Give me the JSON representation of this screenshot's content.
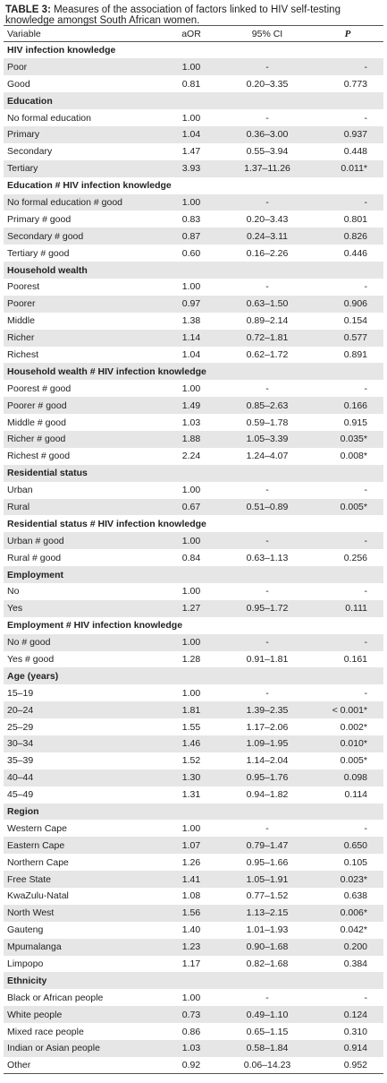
{
  "caption": {
    "label": "TABLE 3:",
    "text": " Measures of the association of factors linked to HIV self-testing knowledge amongst South African women."
  },
  "headers": [
    "Variable",
    "aOR",
    "95% CI",
    "P"
  ],
  "sections": [
    {
      "title": "HIV infection knowledge",
      "rows": [
        [
          "Poor",
          "1.00",
          "-",
          "-"
        ],
        [
          "Good",
          "0.81",
          "0.20–3.35",
          "0.773"
        ]
      ]
    },
    {
      "title": "Education",
      "rows": [
        [
          "No formal education",
          "1.00",
          "-",
          "-"
        ],
        [
          "Primary",
          "1.04",
          "0.36–3.00",
          "0.937"
        ],
        [
          "Secondary",
          "1.47",
          "0.55–3.94",
          "0.448"
        ],
        [
          "Tertiary",
          "3.93",
          "1.37–11.26",
          "0.011*"
        ]
      ]
    },
    {
      "title": "Education # HIV infection knowledge",
      "rows": [
        [
          "No formal education # good",
          "1.00",
          "-",
          "-"
        ],
        [
          "Primary # good",
          "0.83",
          "0.20–3.43",
          "0.801"
        ],
        [
          "Secondary # good",
          "0.87",
          "0.24–3.11",
          "0.826"
        ],
        [
          "Tertiary # good",
          "0.60",
          "0.16–2.26",
          "0.446"
        ]
      ]
    },
    {
      "title": "Household wealth",
      "rows": [
        [
          "Poorest",
          "1.00",
          "-",
          "-"
        ],
        [
          "Poorer",
          "0.97",
          "0.63–1.50",
          "0.906"
        ],
        [
          "Middle",
          "1.38",
          "0.89–2.14",
          "0.154"
        ],
        [
          "Richer",
          "1.14",
          "0.72–1.81",
          "0.577"
        ],
        [
          "Richest",
          "1.04",
          "0.62–1.72",
          "0.891"
        ]
      ]
    },
    {
      "title": "Household wealth # HIV infection knowledge",
      "rows": [
        [
          "Poorest # good",
          "1.00",
          "-",
          "-"
        ],
        [
          "Poorer # good",
          "1.49",
          "0.85–2.63",
          "0.166"
        ],
        [
          "Middle # good",
          "1.03",
          "0.59–1.78",
          "0.915"
        ],
        [
          "Richer # good",
          "1.88",
          "1.05–3.39",
          "0.035*"
        ],
        [
          "Richest # good",
          "2.24",
          "1.24–4.07",
          "0.008*"
        ]
      ]
    },
    {
      "title": "Residential status",
      "rows": [
        [
          "Urban",
          "1.00",
          "-",
          "-"
        ],
        [
          "Rural",
          "0.67",
          "0.51–0.89",
          "0.005*"
        ]
      ]
    },
    {
      "title": "Residential status # HIV infection knowledge",
      "rows": [
        [
          "Urban # good",
          "1.00",
          "-",
          "-"
        ],
        [
          "Rural # good",
          "0.84",
          "0.63–1.13",
          "0.256"
        ]
      ]
    },
    {
      "title": "Employment",
      "rows": [
        [
          "No",
          "1.00",
          "-",
          "-"
        ],
        [
          "Yes",
          "1.27",
          "0.95–1.72",
          "0.111"
        ]
      ]
    },
    {
      "title": "Employment # HIV infection knowledge",
      "rows": [
        [
          "No # good",
          "1.00",
          "-",
          "-"
        ],
        [
          "Yes # good",
          "1.28",
          "0.91–1.81",
          "0.161"
        ]
      ]
    },
    {
      "title": "Age (years)",
      "rows": [
        [
          "15–19",
          "1.00",
          "-",
          "-"
        ],
        [
          "20–24",
          "1.81",
          "1.39–2.35",
          "< 0.001*"
        ],
        [
          "25–29",
          "1.55",
          "1.17–2.06",
          "0.002*"
        ],
        [
          "30–34",
          "1.46",
          "1.09–1.95",
          "0.010*"
        ],
        [
          "35–39",
          "1.52",
          "1.14–2.04",
          "0.005*"
        ],
        [
          "40–44",
          "1.30",
          "0.95–1.76",
          "0.098"
        ],
        [
          "45–49",
          "1.31",
          "0.94–1.82",
          "0.114"
        ]
      ]
    },
    {
      "title": "Region",
      "rows": [
        [
          "Western Cape",
          "1.00",
          "-",
          "-"
        ],
        [
          "Eastern Cape",
          "1.07",
          "0.79–1.47",
          "0.650"
        ],
        [
          "Northern Cape",
          "1.26",
          "0.95–1.66",
          "0.105"
        ],
        [
          "Free State",
          "1.41",
          "1.05–1.91",
          "0.023*"
        ],
        [
          "KwaZulu-Natal",
          "1.08",
          "0.77–1.52",
          "0.638"
        ],
        [
          "North West",
          "1.56",
          "1.13–2.15",
          "0.006*"
        ],
        [
          "Gauteng",
          "1.40",
          "1.01–1.93",
          "0.042*"
        ],
        [
          "Mpumalanga",
          "1.23",
          "0.90–1.68",
          "0.200"
        ],
        [
          "Limpopo",
          "1.17",
          "0.82–1.68",
          "0.384"
        ]
      ]
    },
    {
      "title": "Ethnicity",
      "rows": [
        [
          "Black or African people",
          "1.00",
          "-",
          "-"
        ],
        [
          "White people",
          "0.73",
          "0.49–1.10",
          "0.124"
        ],
        [
          "Mixed race people",
          "0.86",
          "0.65–1.15",
          "0.310"
        ],
        [
          "Indian or Asian people",
          "1.03",
          "0.58–1.84",
          "0.914"
        ],
        [
          "Other",
          "0.92",
          "0.06–14.23",
          "0.952"
        ]
      ]
    }
  ]
}
